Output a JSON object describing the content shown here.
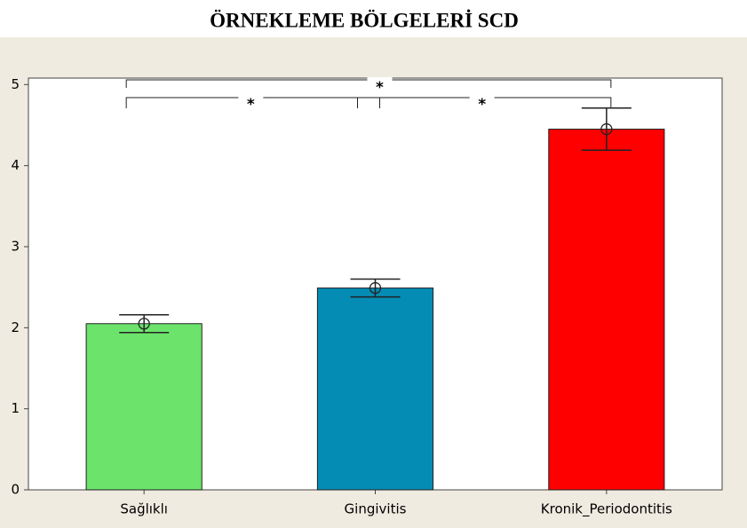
{
  "chart_data": {
    "type": "bar",
    "title": "ÖRNEKLEME BÖLGELERİ SCD",
    "categories": [
      "Sağlıklı",
      "Gingivitis",
      "Kronik_Periodontitis"
    ],
    "values": [
      2.05,
      2.49,
      4.45
    ],
    "errors": [
      0.11,
      0.11,
      0.26
    ],
    "colors": [
      "#6ce46c",
      "#058cb4",
      "#ff0000"
    ],
    "ylim": [
      0,
      5.08
    ],
    "yticks": [
      0,
      1,
      2,
      3,
      4,
      5
    ],
    "significance": [
      {
        "pair": [
          0,
          1
        ],
        "label": "*"
      },
      {
        "pair": [
          1,
          2
        ],
        "label": "*"
      },
      {
        "pair": [
          0,
          2
        ],
        "label": "*"
      }
    ]
  }
}
